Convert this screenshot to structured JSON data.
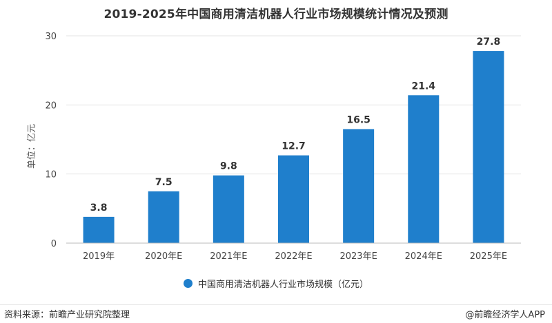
{
  "colors": {
    "bar": "#1f7fcc",
    "grid": "#e3e3e3",
    "axis": "#bbbbbb"
  },
  "legend": {
    "label": "中国商用清洁机器人行业市场规模（亿元）",
    "icon": "circle-marker"
  },
  "footer": {
    "source": "资料来源：前瞻产业研究院整理",
    "credit": "@前瞻经济学人APP"
  },
  "chart_data": {
    "type": "bar",
    "title": "2019-2025年中国商用清洁机器人行业市场规模统计情况及预测",
    "ylabel": "单位：亿元",
    "xlabel": "",
    "categories": [
      "2019年",
      "2020年E",
      "2021年E",
      "2022年E",
      "2023年E",
      "2024年E",
      "2025年E"
    ],
    "series": [
      {
        "name": "中国商用清洁机器人行业市场规模（亿元）",
        "values": [
          3.8,
          7.5,
          9.8,
          12.7,
          16.5,
          21.4,
          27.8
        ]
      }
    ],
    "data_labels": [
      "3.8",
      "7.5",
      "9.8",
      "12.7",
      "16.5",
      "21.4",
      "27.8"
    ],
    "ylim": [
      0,
      30
    ],
    "yticks": [
      0,
      10,
      20,
      30
    ],
    "ytick_labels": [
      "0",
      "10",
      "20",
      "30"
    ],
    "grid": true,
    "legend_position": "bottom"
  }
}
